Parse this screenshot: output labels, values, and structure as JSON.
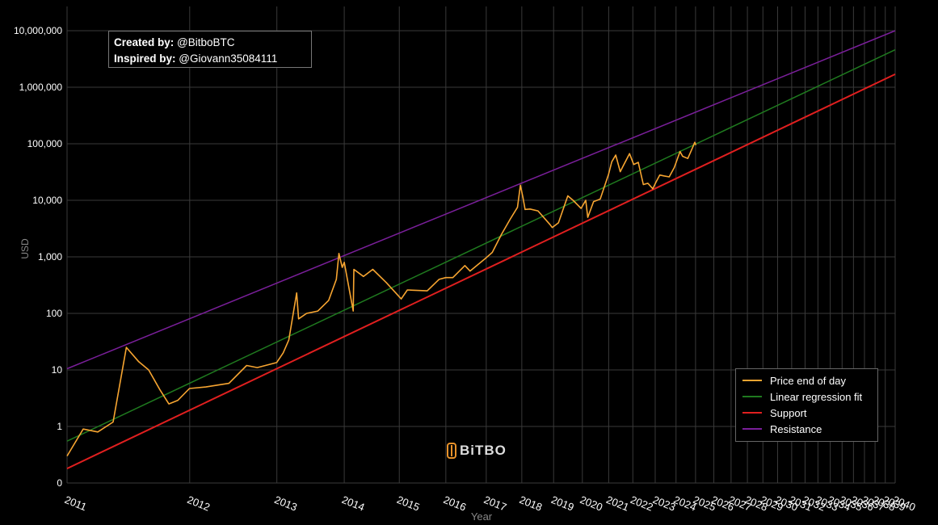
{
  "credit": {
    "created_label": "Created by:",
    "created_value": "@BitboBTC",
    "inspired_label": "Inspired by:",
    "inspired_value": "@Giovann35084111"
  },
  "brand": {
    "name": "BiTBO"
  },
  "colors": {
    "background": "#000000",
    "grid": "#3a3a3a",
    "price": "#f7a531",
    "regression": "#1f7a1f",
    "support": "#e01f1f",
    "resistance": "#7a1f9a",
    "axis_text": "#ffffff"
  },
  "chart_data": {
    "type": "line",
    "title": "",
    "xlabel": "Year",
    "ylabel": "USD",
    "y_scale": "log",
    "y_ticks": [
      "0",
      "1",
      "10",
      "100",
      "1,000",
      "10,000",
      "100,000",
      "1,000,000",
      "10,000,000"
    ],
    "y_tick_values": [
      0.1,
      1,
      10,
      100,
      1000,
      10000,
      100000,
      1000000,
      10000000
    ],
    "x_scale": "log of days since genesis block",
    "x_tick_labels": [
      "2011",
      "2012",
      "2013",
      "2014",
      "2015",
      "2016",
      "2017",
      "2018",
      "2019",
      "2020",
      "2021",
      "2022",
      "2023",
      "2024",
      "2025",
      "2026",
      "2027",
      "2028",
      "2029",
      "2030",
      "2031",
      "2032",
      "2033",
      "2034",
      "2035",
      "2036",
      "2037",
      "2038",
      "2039",
      "2040"
    ],
    "x_range": [
      "2011-01-01",
      "2040-01-01"
    ],
    "grid": true,
    "legend_position": "bottom-right",
    "legend": [
      "Price end of day",
      "Linear regression fit",
      "Support",
      "Resistance"
    ],
    "series": [
      {
        "name": "Price end of day",
        "x": [
          "2011-01-01",
          "2011-02-10",
          "2011-03-20",
          "2011-05-01",
          "2011-06-08",
          "2011-07-15",
          "2011-08-15",
          "2011-09-20",
          "2011-10-20",
          "2011-11-20",
          "2011-12-31",
          "2012-03-01",
          "2012-06-01",
          "2012-08-15",
          "2012-10-01",
          "2012-12-31",
          "2013-02-01",
          "2013-03-01",
          "2013-04-10",
          "2013-04-20",
          "2013-06-01",
          "2013-08-01",
          "2013-10-01",
          "2013-11-15",
          "2013-11-30",
          "2013-12-20",
          "2014-01-01",
          "2014-02-25",
          "2014-03-01",
          "2014-05-01",
          "2014-07-01",
          "2014-10-01",
          "2015-01-15",
          "2015-03-01",
          "2015-08-01",
          "2015-11-05",
          "2015-12-31",
          "2016-03-01",
          "2016-06-15",
          "2016-08-01",
          "2016-12-31",
          "2017-03-01",
          "2017-06-01",
          "2017-09-01",
          "2017-11-15",
          "2017-12-17",
          "2018-01-15",
          "2018-02-06",
          "2018-04-01",
          "2018-07-01",
          "2018-11-20",
          "2018-12-15",
          "2019-03-01",
          "2019-06-26",
          "2019-09-01",
          "2019-12-15",
          "2020-02-15",
          "2020-03-13",
          "2020-06-01",
          "2020-09-01",
          "2020-12-31",
          "2021-02-15",
          "2021-04-14",
          "2021-06-21",
          "2021-08-01",
          "2021-11-10",
          "2022-01-15",
          "2022-03-28",
          "2022-06-18",
          "2022-09-01",
          "2022-11-21",
          "2023-01-15",
          "2023-03-20",
          "2023-06-01",
          "2023-09-01",
          "2023-12-01",
          "2024-03-14",
          "2024-05-01",
          "2024-08-05",
          "2024-11-15",
          "2024-12-17",
          "2025-01-10"
        ],
        "y": [
          0.3,
          0.9,
          0.8,
          1.2,
          25,
          14,
          10,
          4.5,
          2.5,
          2.9,
          4.7,
          5,
          5.8,
          12,
          11,
          13.5,
          20,
          34,
          230,
          80,
          100,
          110,
          170,
          400,
          1150,
          650,
          800,
          110,
          600,
          450,
          600,
          350,
          180,
          260,
          250,
          400,
          430,
          430,
          700,
          560,
          960,
          1200,
          2500,
          4700,
          7500,
          18500,
          11000,
          6900,
          7000,
          6500,
          3700,
          3300,
          4000,
          12000,
          10000,
          7200,
          10000,
          5000,
          9500,
          10500,
          29000,
          48000,
          63000,
          32000,
          40000,
          67000,
          43000,
          47000,
          19000,
          20000,
          16000,
          21000,
          28000,
          27000,
          26000,
          38000,
          73000,
          60000,
          55000,
          90000,
          106000,
          95000
        ]
      },
      {
        "name": "Linear regression fit",
        "x": [
          "2011-01-01",
          "2040-01-01"
        ],
        "y": [
          0.55,
          4600000
        ]
      },
      {
        "name": "Support",
        "x": [
          "2011-01-01",
          "2040-01-01"
        ],
        "y": [
          0.18,
          1700000
        ]
      },
      {
        "name": "Resistance",
        "x": [
          "2011-01-01",
          "2040-01-01"
        ],
        "y": [
          10.5,
          10000000
        ]
      }
    ]
  }
}
